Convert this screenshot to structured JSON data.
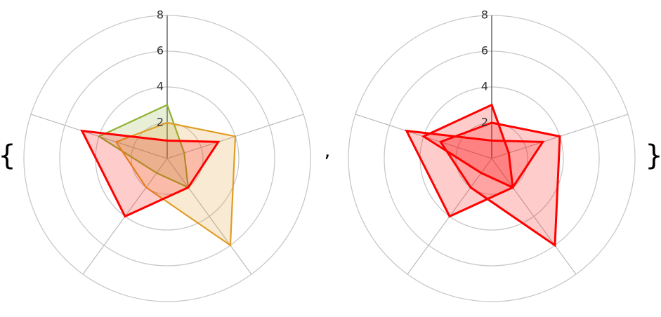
{
  "delimiters": {
    "open": "{",
    "separator": ",",
    "close": "}"
  },
  "chart_data": [
    {
      "type": "radar",
      "rlim": [
        0,
        8
      ],
      "rticks": [
        2,
        4,
        6,
        8
      ],
      "grid": true,
      "series": [
        {
          "color": "#8fb131",
          "values": [
            3,
            1,
            2,
            1,
            4
          ]
        },
        {
          "color": "#e19c24",
          "values": [
            2,
            4,
            6,
            2,
            3
          ]
        },
        {
          "color": "#ff0000",
          "values": [
            1,
            3,
            2,
            4,
            5
          ]
        }
      ]
    },
    {
      "type": "radar",
      "rlim": [
        0,
        8
      ],
      "rticks": [
        2,
        4,
        6,
        8
      ],
      "grid": true,
      "series": [
        {
          "color": "#ff0000",
          "values": [
            3,
            1,
            2,
            1,
            4
          ]
        },
        {
          "color": "#ff0000",
          "values": [
            2,
            4,
            6,
            2,
            3
          ]
        },
        {
          "color": "#ff0000",
          "values": [
            1,
            3,
            2,
            4,
            5
          ]
        }
      ]
    }
  ]
}
